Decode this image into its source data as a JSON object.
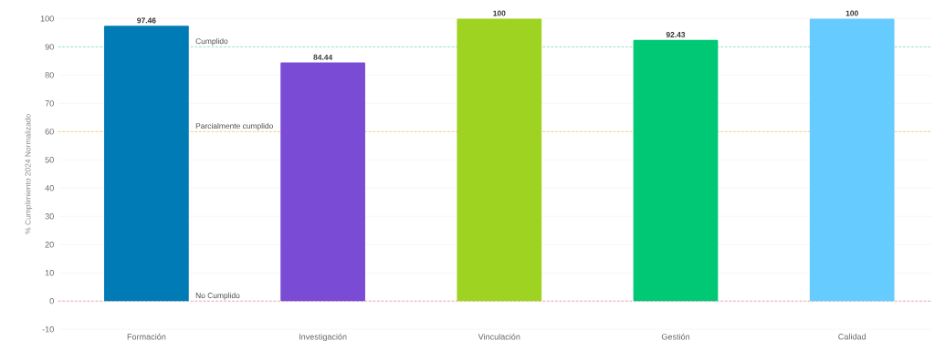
{
  "chart_data": {
    "type": "bar",
    "ylabel": "% Cumplimiento 2024 Normalizado",
    "categories": [
      "Formación",
      "Investigación",
      "Vinculación",
      "Gestión",
      "Calidad"
    ],
    "values": [
      97.46,
      84.44,
      100,
      92.43,
      100
    ],
    "colors": [
      "#007bb6",
      "#7a4bd4",
      "#9fd321",
      "#00c875",
      "#66cbff"
    ],
    "data_labels": true,
    "ylim": [
      -10,
      100
    ],
    "yticks": [
      -10,
      0,
      10,
      20,
      30,
      40,
      50,
      60,
      70,
      80,
      90,
      100
    ],
    "grid": "y",
    "ref_lines": [
      {
        "axis": "y",
        "value": 90,
        "label": "Cumplido",
        "color": "#5fd3a8",
        "line_style": "dashed"
      },
      {
        "axis": "y",
        "value": 60,
        "label": "Parcialmente cumplido",
        "color": "#f5b041",
        "line_style": "dashed"
      },
      {
        "axis": "y",
        "value": 0,
        "label": "No Cumplido",
        "color": "#e8707a",
        "line_style": "dashed"
      }
    ]
  }
}
